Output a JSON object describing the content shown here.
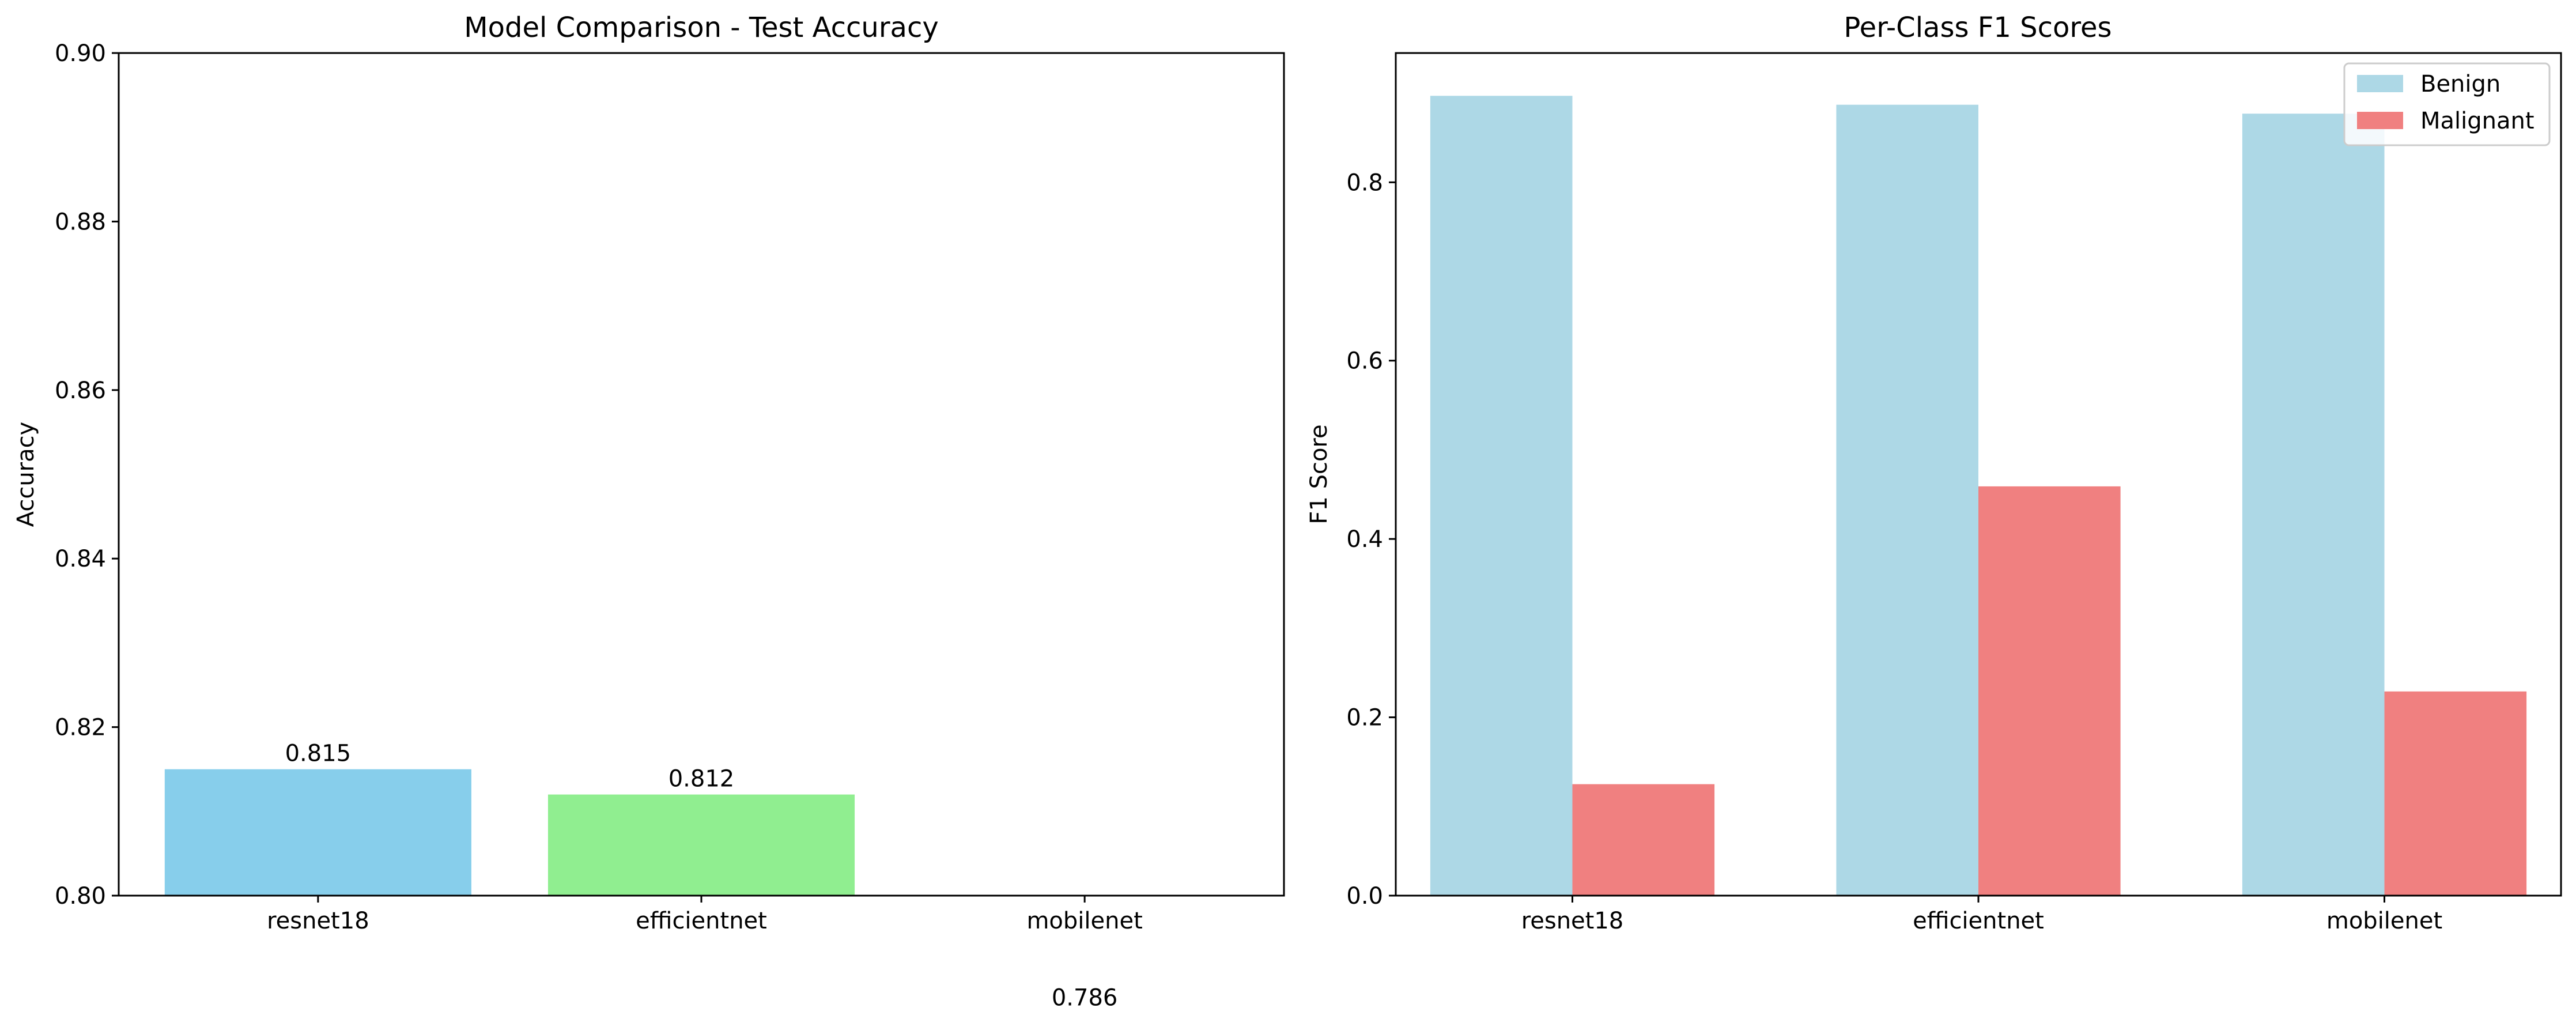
{
  "chart_data": [
    {
      "type": "bar",
      "title": "Model Comparison - Test Accuracy",
      "xlabel": "",
      "ylabel": "Accuracy",
      "categories": [
        "resnet18",
        "efficientnet",
        "mobilenet"
      ],
      "values": [
        0.815,
        0.812,
        0.786
      ],
      "value_labels": [
        "0.815",
        "0.812",
        "0.786"
      ],
      "bar_colors": [
        "#87ceeb",
        "#90ee90",
        "#f08080"
      ],
      "ylim": [
        0.8,
        0.9
      ],
      "yticks": [
        0.8,
        0.82,
        0.84,
        0.86,
        0.88,
        0.9
      ],
      "ytick_labels": [
        "0.80",
        "0.82",
        "0.84",
        "0.86",
        "0.88",
        "0.90"
      ],
      "grid": false,
      "legend": null
    },
    {
      "type": "bar",
      "title": "Per-Class F1 Scores",
      "xlabel": "",
      "ylabel": "F1 Score",
      "categories": [
        "resnet18",
        "efficientnet",
        "mobilenet"
      ],
      "series": [
        {
          "name": "Benign",
          "color": "#add8e6",
          "values": [
            0.897,
            0.887,
            0.877
          ]
        },
        {
          "name": "Malignant",
          "color": "#f08080",
          "values": [
            0.125,
            0.459,
            0.229
          ]
        }
      ],
      "ylim": [
        0.0,
        0.945
      ],
      "yticks": [
        0.0,
        0.2,
        0.4,
        0.6,
        0.8
      ],
      "ytick_labels": [
        "0.0",
        "0.2",
        "0.4",
        "0.6",
        "0.8"
      ],
      "grid": false,
      "legend": "top-right"
    }
  ]
}
